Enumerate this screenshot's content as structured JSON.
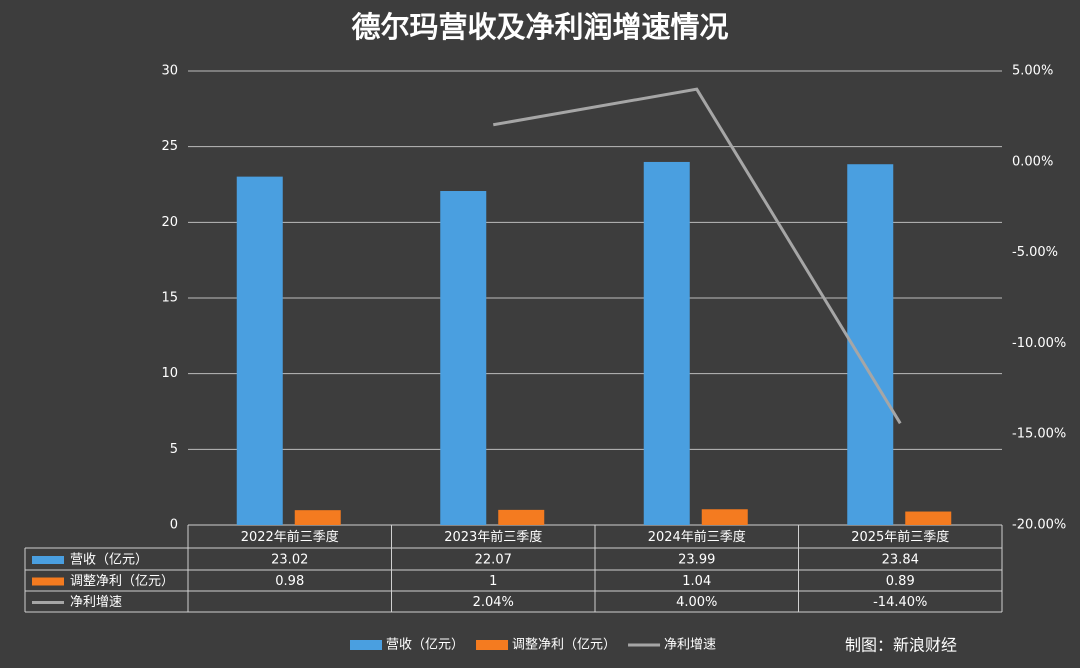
{
  "chart_data": {
    "type": "bar",
    "title": "德尔玛营收及净利润增速情况",
    "categories": [
      "2022年前三季度",
      "2023年前三季度",
      "2024年前三季度",
      "2025年前三季度"
    ],
    "series": [
      {
        "name": "营收（亿元）",
        "color": "#4a9fe0",
        "values": [
          23.02,
          22.07,
          23.99,
          23.84
        ]
      },
      {
        "name": "调整净利（亿元）",
        "color": "#f47b20",
        "values": [
          0.98,
          1,
          1.04,
          0.89
        ]
      },
      {
        "name": "净利增速",
        "color": "#a6a6a6",
        "type": "line",
        "axis": "y2",
        "values": [
          null,
          2.04,
          4.0,
          -14.4
        ],
        "value_labels": [
          null,
          "2.04%",
          "4.00%",
          "-14.40%"
        ]
      }
    ],
    "ylim": [
      0,
      30
    ],
    "yticks": [
      0,
      5,
      10,
      15,
      20,
      25,
      30
    ],
    "y2lim": [
      -20,
      5
    ],
    "y2ticks": [
      {
        "value": 5,
        "label": "5.00%"
      },
      {
        "value": 0,
        "label": "0.00%"
      },
      {
        "value": -5,
        "label": "-5.00%"
      },
      {
        "value": -10,
        "label": "-10.00%"
      },
      {
        "value": -15,
        "label": "-15.00%"
      },
      {
        "value": -20,
        "label": "-20.00%"
      }
    ],
    "grid": true,
    "legend": "bottom",
    "source": "制图：新浪财经"
  }
}
